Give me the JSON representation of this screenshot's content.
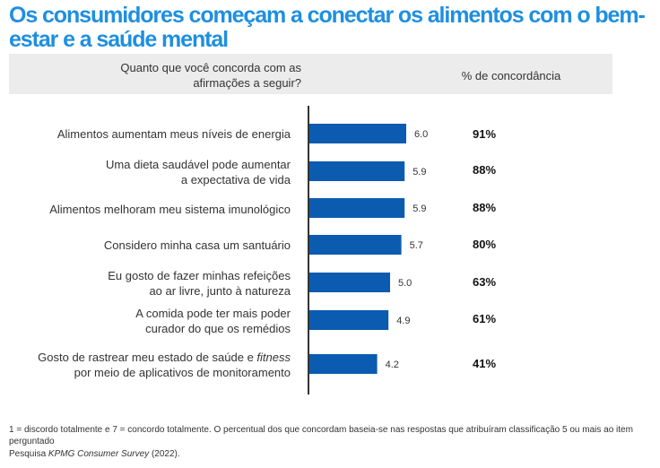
{
  "title": "Os consumidores começam a conectar os alimentos com o bem-estar e a saúde mental",
  "header": {
    "question": "Quanto que você concorda com as afirmações a seguir?",
    "agreement": "% de concordância"
  },
  "colors": {
    "bar": "#0b5cb0",
    "title": "#1e8fe0",
    "axis": "#333333"
  },
  "chart_data": {
    "type": "bar",
    "orientation": "horizontal",
    "categories": [
      "Alimentos aumentam meus níveis de energia",
      "Uma dieta saudável pode aumentar a expectativa de vida",
      "Alimentos melhoram meu sistema imunológico",
      "Considero minha casa um santuário",
      "Eu gosto de fazer minhas refeições ao ar livre, junto à natureza",
      "A comida pode ter mais poder curador do que os remédios",
      "Gosto de rastrear meu estado de saúde e fitness por meio de aplicativos de monitoramento"
    ],
    "values": [
      6.0,
      5.9,
      5.9,
      5.7,
      5.0,
      4.9,
      4.2
    ],
    "value_labels": [
      "6.0",
      "5.9",
      "5.9",
      "5.7",
      "5.0",
      "4.9",
      "4.2"
    ],
    "agreement": [
      "91%",
      "88%",
      "88%",
      "80%",
      "63%",
      "61%",
      "41%"
    ],
    "xlim": [
      0,
      7
    ]
  },
  "rows": [
    {
      "line1": "Alimentos aumentam meus níveis de energia",
      "line2": ""
    },
    {
      "line1": "Uma dieta saudável pode aumentar",
      "line2": "a expectativa de vida"
    },
    {
      "line1": "Alimentos melhoram meu sistema imunológico",
      "line2": ""
    },
    {
      "line1": "Considero minha casa um santuário",
      "line2": ""
    },
    {
      "line1": "Eu gosto de fazer minhas refeições",
      "line2": "ao ar livre, junto à natureza"
    },
    {
      "line1": "A comida pode ter mais poder",
      "line2": "curador do que os remédios"
    },
    {
      "line1": "Gosto de rastrear meu estado de saúde e ",
      "line1_em": "fitness",
      "line2": "por meio de aplicativos de monitoramento"
    }
  ],
  "footnote": "1 = discordo totalmente e 7 = concordo totalmente. O percentual dos que concordam baseia-se nas respostas que atribuíram classificação 5 ou mais ao item perguntado",
  "source": {
    "prefix": "Pesquisa ",
    "survey": "KPMG Consumer Survey",
    "suffix": " (2022)."
  }
}
